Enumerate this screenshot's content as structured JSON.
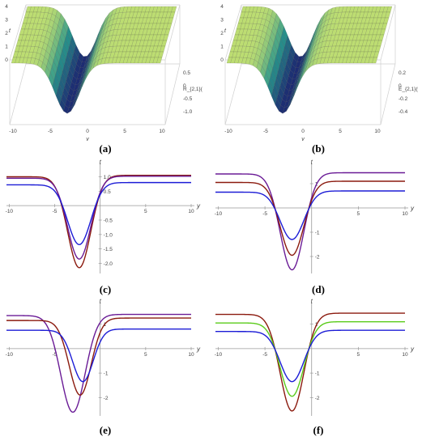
{
  "captions": [
    "(a)",
    "(b)",
    "(c)",
    "(d)",
    "(e)",
    "(f)"
  ],
  "colors": {
    "blue": "#1c1cd6",
    "dark_red": "#8b1a0e",
    "purple": "#6a1b96",
    "green": "#5acb1a",
    "surface_high": "#ecf46a",
    "surface_low": "#1b1d6e"
  },
  "chart_data": [
    {
      "type": "surface3d",
      "caption": "(a)",
      "xlabel": "y",
      "ylabel": "t",
      "zlabel": "R_{2,1}(y,1,t)",
      "x_ticks": [
        "-10",
        "-5",
        "0",
        "5",
        "10"
      ],
      "y_ticks": [
        "0",
        "1",
        "2",
        "3",
        "4"
      ],
      "z_ticks": [
        "0.5",
        "0",
        "-0.5",
        "-1.0"
      ],
      "xlim": [
        -10,
        10
      ],
      "ylim": [
        0,
        4
      ],
      "zlim": [
        -1.2,
        0.7
      ]
    },
    {
      "type": "surface3d",
      "caption": "(b)",
      "xlabel": "y",
      "ylabel": "t",
      "zlabel": "E_{2,1}(y,1,t)",
      "x_ticks": [
        "-10",
        "-5",
        "0",
        "5",
        "10"
      ],
      "y_ticks": [
        "0",
        "1",
        "2",
        "3",
        "4"
      ],
      "z_ticks": [
        "0.2",
        "0",
        "-0.2",
        "-0.4"
      ],
      "xlim": [
        -10,
        10
      ],
      "ylim": [
        0,
        4
      ],
      "zlim": [
        -0.5,
        0.3
      ]
    },
    {
      "type": "line",
      "caption": "(c)",
      "xlabel": "y",
      "ylabel": "t",
      "x_ticks": [
        -10,
        -5,
        5,
        10
      ],
      "y_ticks": [
        1.0,
        0.5,
        -0.5,
        -1.0,
        -1.5,
        -2.0
      ],
      "y_tick_labels": [
        "1.0",
        "0.5",
        "-0.5",
        "-1.0",
        "-1.5",
        "-2.0"
      ],
      "xlim": [
        -10.3,
        10
      ],
      "ylim": [
        -2.35,
        1.35
      ],
      "series": [
        {
          "color": "#8b1a0e",
          "min_x": -2.3,
          "min_y": -2.15,
          "left": 1.0,
          "right": 1.05,
          "w": 1.8
        },
        {
          "color": "#6a1b96",
          "min_x": -2.3,
          "min_y": -1.85,
          "left": 0.95,
          "right": 1.02,
          "w": 1.8
        },
        {
          "color": "#1c1cd6",
          "min_x": -2.3,
          "min_y": -1.35,
          "left": 0.72,
          "right": 0.8,
          "w": 1.8
        }
      ]
    },
    {
      "type": "line",
      "caption": "(d)",
      "xlabel": "y",
      "ylabel": "t",
      "x_ticks": [
        -10,
        -5,
        5,
        10
      ],
      "y_ticks": [
        1,
        -1,
        -2
      ],
      "y_tick_labels": [
        "1",
        "-1",
        "-2"
      ],
      "xlim": [
        -10.3,
        10
      ],
      "ylim": [
        -2.7,
        1.7
      ],
      "series": [
        {
          "color": "#6a1b96",
          "min_x": -2.1,
          "min_y": -2.55,
          "left": 1.4,
          "right": 1.45,
          "w": 1.8
        },
        {
          "color": "#8b1a0e",
          "min_x": -2.1,
          "min_y": -1.95,
          "left": 1.05,
          "right": 1.1,
          "w": 1.8
        },
        {
          "color": "#1c1cd6",
          "min_x": -2.1,
          "min_y": -1.3,
          "left": 0.65,
          "right": 0.7,
          "w": 1.8
        }
      ]
    },
    {
      "type": "line",
      "caption": "(e)",
      "xlabel": "y",
      "ylabel": "t",
      "x_ticks": [
        -10,
        -5,
        5,
        10
      ],
      "y_ticks": [
        1,
        -1,
        -2
      ],
      "y_tick_labels": [
        "1",
        "-1",
        "-2"
      ],
      "xlim": [
        -10.3,
        10
      ],
      "ylim": [
        -2.75,
        1.75
      ],
      "series": [
        {
          "color": "#6a1b96",
          "min_x": -3.0,
          "min_y": -2.6,
          "left": 1.35,
          "right": 1.4,
          "w": 1.9
        },
        {
          "color": "#8b1a0e",
          "min_x": -2.2,
          "min_y": -1.9,
          "left": 1.15,
          "right": 1.25,
          "w": 1.7
        },
        {
          "color": "#1c1cd6",
          "min_x": -1.9,
          "min_y": -1.35,
          "left": 0.75,
          "right": 0.8,
          "w": 1.6
        }
      ]
    },
    {
      "type": "line",
      "caption": "(f)",
      "xlabel": "y",
      "ylabel": "t",
      "x_ticks": [
        -10,
        -5,
        5,
        10
      ],
      "y_ticks": [
        1,
        -1,
        -2
      ],
      "y_tick_labels": [
        "1",
        "-1",
        "-2"
      ],
      "xlim": [
        -10.3,
        10
      ],
      "ylim": [
        -2.75,
        1.75
      ],
      "series": [
        {
          "color": "#8b1a0e",
          "min_x": -2.1,
          "min_y": -2.55,
          "left": 1.4,
          "right": 1.45,
          "w": 1.8
        },
        {
          "color": "#5acb1a",
          "min_x": -2.1,
          "min_y": -1.95,
          "left": 1.05,
          "right": 1.1,
          "w": 1.8
        },
        {
          "color": "#1c1cd6",
          "min_x": -2.1,
          "min_y": -1.35,
          "left": 0.7,
          "right": 0.75,
          "w": 1.8
        }
      ]
    }
  ]
}
